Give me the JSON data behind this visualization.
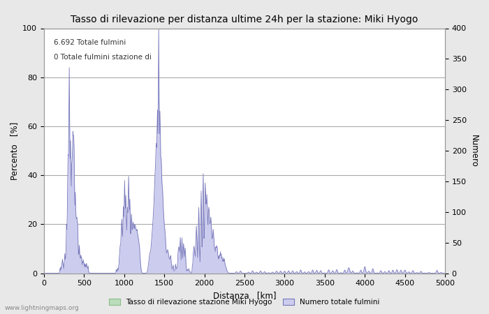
{
  "title": "Tasso di rilevazione per distanza ultime 24h per la stazione: Miki Hyogo",
  "xlabel": "Distanza   [km]",
  "ylabel_left": "Percento   [%]",
  "ylabel_right": "Numero",
  "xlim": [
    0,
    5000
  ],
  "ylim_left": [
    0,
    100
  ],
  "ylim_right": [
    0,
    400
  ],
  "annotation1": "6.692 Totale fulmini",
  "annotation2": "0 Totale fulmini stazione di",
  "legend_green": "Tasso di rilevazione stazione Miki Hyogo",
  "legend_blue": "Numero totale fulmini",
  "watermark": "www.lightningmaps.org",
  "bg_color": "#e8e8e8",
  "plot_bg": "#ffffff",
  "line_color": "#7777bb",
  "fill_blue": "#ccccee",
  "fill_green": "#bbddbb",
  "grid_color": "#aaaaaa",
  "title_fontsize": 10,
  "label_fontsize": 8.5,
  "tick_fontsize": 8
}
